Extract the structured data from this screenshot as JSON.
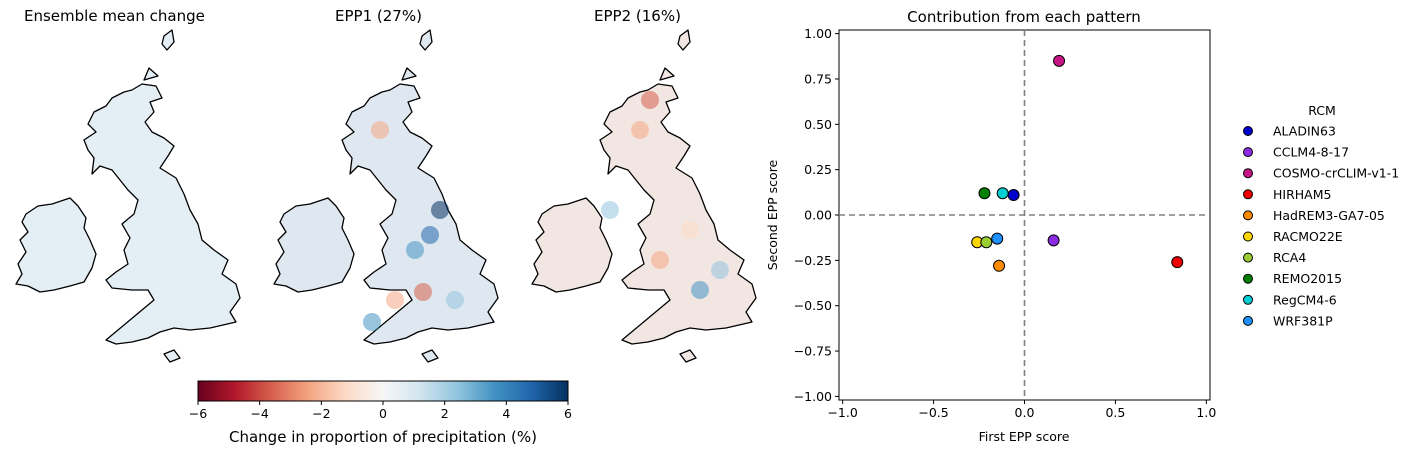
{
  "maps": [
    {
      "title": "Ensemble mean change"
    },
    {
      "title": "EPP1 (27%)"
    },
    {
      "title": "EPP2 (16%)"
    }
  ],
  "colorbar": {
    "label": "Change in proportion of precipitation (%)",
    "range": [
      -6,
      6
    ],
    "ticks": [
      "−6",
      "−4",
      "−2",
      "0",
      "2",
      "4",
      "6"
    ],
    "colors": [
      "#67001f",
      "#b2182b",
      "#d6604d",
      "#f4a582",
      "#fddbc7",
      "#f7f7f7",
      "#d1e5f0",
      "#92c5de",
      "#4393c3",
      "#2166ac",
      "#053061"
    ]
  },
  "chart_data": {
    "type": "scatter",
    "title": "Contribution from each pattern",
    "xlabel": "First EPP score",
    "ylabel": "Second EPP score",
    "xlim": [
      -1.02,
      1.02
    ],
    "ylim": [
      -1.02,
      1.02
    ],
    "xticks": [
      -1.0,
      -0.5,
      0.0,
      0.5,
      1.0
    ],
    "xtick_labels": [
      "−1.0",
      "−0.5",
      "0.0",
      "0.5",
      "1.0"
    ],
    "yticks": [
      1.0,
      0.75,
      0.5,
      0.25,
      0.0,
      -0.25,
      -0.5,
      -0.75,
      -1.0
    ],
    "ytick_labels": [
      "1.00",
      "0.75",
      "0.50",
      "0.25",
      "0.00",
      "−0.25",
      "−0.50",
      "−0.75",
      "−1.00"
    ],
    "reference_lines": {
      "x": 0,
      "y": 0,
      "style": "dashed",
      "color": "#808080"
    },
    "legend": {
      "title": "RCM",
      "placement": "right"
    },
    "series": [
      {
        "name": "ALADIN63",
        "color": "#0000cd",
        "x": -0.06,
        "y": 0.11
      },
      {
        "name": "CCLM4-8-17",
        "color": "#8a2be2",
        "x": 0.16,
        "y": -0.14
      },
      {
        "name": "COSMO-crCLIM-v1-1",
        "color": "#c71585",
        "x": 0.19,
        "y": 0.85
      },
      {
        "name": "HIRHAM5",
        "color": "#ee0000",
        "x": 0.84,
        "y": -0.26
      },
      {
        "name": "HadREM3-GA7-05",
        "color": "#ff8c00",
        "x": -0.14,
        "y": -0.28
      },
      {
        "name": "RACMO22E",
        "color": "#ffd700",
        "x": -0.26,
        "y": -0.15
      },
      {
        "name": "RCA4",
        "color": "#9acd32",
        "x": -0.21,
        "y": -0.15
      },
      {
        "name": "REMO2015",
        "color": "#008000",
        "x": -0.22,
        "y": 0.12
      },
      {
        "name": "RegCM4-6",
        "color": "#00ced1",
        "x": -0.12,
        "y": 0.12
      },
      {
        "name": "WRF381P",
        "color": "#1e90ff",
        "x": -0.15,
        "y": -0.13
      }
    ]
  }
}
